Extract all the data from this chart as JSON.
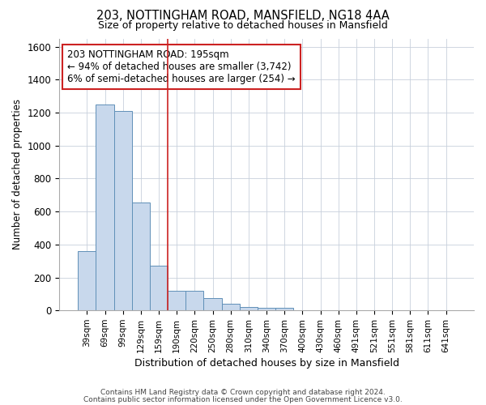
{
  "title1": "203, NOTTINGHAM ROAD, MANSFIELD, NG18 4AA",
  "title2": "Size of property relative to detached houses in Mansfield",
  "xlabel": "Distribution of detached houses by size in Mansfield",
  "ylabel": "Number of detached properties",
  "footnote1": "Contains HM Land Registry data © Crown copyright and database right 2024.",
  "footnote2": "Contains public sector information licensed under the Open Government Licence v3.0.",
  "categories": [
    "39sqm",
    "69sqm",
    "99sqm",
    "129sqm",
    "159sqm",
    "190sqm",
    "220sqm",
    "250sqm",
    "280sqm",
    "310sqm",
    "340sqm",
    "370sqm",
    "400sqm",
    "430sqm",
    "460sqm",
    "491sqm",
    "521sqm",
    "551sqm",
    "581sqm",
    "611sqm",
    "641sqm"
  ],
  "values": [
    360,
    1250,
    1210,
    655,
    270,
    120,
    120,
    75,
    40,
    20,
    15,
    15,
    0,
    0,
    0,
    0,
    0,
    0,
    0,
    0,
    0
  ],
  "bar_color": "#c8d8ec",
  "bar_edge_color": "#6090b8",
  "ylim": [
    0,
    1650
  ],
  "yticks": [
    0,
    200,
    400,
    600,
    800,
    1000,
    1200,
    1400,
    1600
  ],
  "vline_x_index": 5,
  "vline_color": "#cc2222",
  "annotation_line1": "203 NOTTINGHAM ROAD: 195sqm",
  "annotation_line2": "← 94% of detached houses are smaller (3,742)",
  "annotation_line3": "6% of semi-detached houses are larger (254) →",
  "annotation_box_color": "#cc2222",
  "background_color": "#ffffff",
  "grid_color": "#c8d0dc"
}
